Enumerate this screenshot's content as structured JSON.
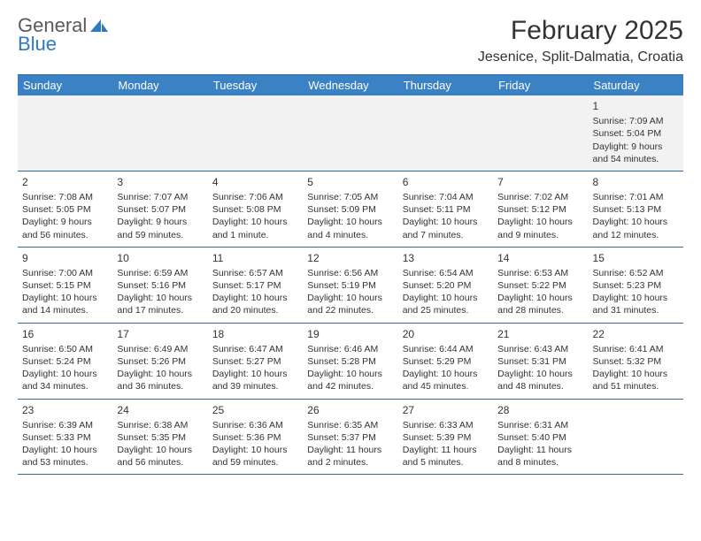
{
  "brand": {
    "word1": "General",
    "word2": "Blue"
  },
  "title": "February 2025",
  "location": "Jesenice, Split-Dalmatia, Croatia",
  "colors": {
    "header_bg": "#3b82c4",
    "header_text": "#ffffff",
    "rule": "#2f6aa8",
    "first_week_bg": "#f2f2f2",
    "brand_blue": "#2f7ac0",
    "brand_gray": "#5a5a5a",
    "text": "#333333"
  },
  "dayHeaders": [
    "Sunday",
    "Monday",
    "Tuesday",
    "Wednesday",
    "Thursday",
    "Friday",
    "Saturday"
  ],
  "weeks": [
    [
      null,
      null,
      null,
      null,
      null,
      null,
      {
        "n": "1",
        "sunrise": "Sunrise: 7:09 AM",
        "sunset": "Sunset: 5:04 PM",
        "daylight": "Daylight: 9 hours and 54 minutes."
      }
    ],
    [
      {
        "n": "2",
        "sunrise": "Sunrise: 7:08 AM",
        "sunset": "Sunset: 5:05 PM",
        "daylight": "Daylight: 9 hours and 56 minutes."
      },
      {
        "n": "3",
        "sunrise": "Sunrise: 7:07 AM",
        "sunset": "Sunset: 5:07 PM",
        "daylight": "Daylight: 9 hours and 59 minutes."
      },
      {
        "n": "4",
        "sunrise": "Sunrise: 7:06 AM",
        "sunset": "Sunset: 5:08 PM",
        "daylight": "Daylight: 10 hours and 1 minute."
      },
      {
        "n": "5",
        "sunrise": "Sunrise: 7:05 AM",
        "sunset": "Sunset: 5:09 PM",
        "daylight": "Daylight: 10 hours and 4 minutes."
      },
      {
        "n": "6",
        "sunrise": "Sunrise: 7:04 AM",
        "sunset": "Sunset: 5:11 PM",
        "daylight": "Daylight: 10 hours and 7 minutes."
      },
      {
        "n": "7",
        "sunrise": "Sunrise: 7:02 AM",
        "sunset": "Sunset: 5:12 PM",
        "daylight": "Daylight: 10 hours and 9 minutes."
      },
      {
        "n": "8",
        "sunrise": "Sunrise: 7:01 AM",
        "sunset": "Sunset: 5:13 PM",
        "daylight": "Daylight: 10 hours and 12 minutes."
      }
    ],
    [
      {
        "n": "9",
        "sunrise": "Sunrise: 7:00 AM",
        "sunset": "Sunset: 5:15 PM",
        "daylight": "Daylight: 10 hours and 14 minutes."
      },
      {
        "n": "10",
        "sunrise": "Sunrise: 6:59 AM",
        "sunset": "Sunset: 5:16 PM",
        "daylight": "Daylight: 10 hours and 17 minutes."
      },
      {
        "n": "11",
        "sunrise": "Sunrise: 6:57 AM",
        "sunset": "Sunset: 5:17 PM",
        "daylight": "Daylight: 10 hours and 20 minutes."
      },
      {
        "n": "12",
        "sunrise": "Sunrise: 6:56 AM",
        "sunset": "Sunset: 5:19 PM",
        "daylight": "Daylight: 10 hours and 22 minutes."
      },
      {
        "n": "13",
        "sunrise": "Sunrise: 6:54 AM",
        "sunset": "Sunset: 5:20 PM",
        "daylight": "Daylight: 10 hours and 25 minutes."
      },
      {
        "n": "14",
        "sunrise": "Sunrise: 6:53 AM",
        "sunset": "Sunset: 5:22 PM",
        "daylight": "Daylight: 10 hours and 28 minutes."
      },
      {
        "n": "15",
        "sunrise": "Sunrise: 6:52 AM",
        "sunset": "Sunset: 5:23 PM",
        "daylight": "Daylight: 10 hours and 31 minutes."
      }
    ],
    [
      {
        "n": "16",
        "sunrise": "Sunrise: 6:50 AM",
        "sunset": "Sunset: 5:24 PM",
        "daylight": "Daylight: 10 hours and 34 minutes."
      },
      {
        "n": "17",
        "sunrise": "Sunrise: 6:49 AM",
        "sunset": "Sunset: 5:26 PM",
        "daylight": "Daylight: 10 hours and 36 minutes."
      },
      {
        "n": "18",
        "sunrise": "Sunrise: 6:47 AM",
        "sunset": "Sunset: 5:27 PM",
        "daylight": "Daylight: 10 hours and 39 minutes."
      },
      {
        "n": "19",
        "sunrise": "Sunrise: 6:46 AM",
        "sunset": "Sunset: 5:28 PM",
        "daylight": "Daylight: 10 hours and 42 minutes."
      },
      {
        "n": "20",
        "sunrise": "Sunrise: 6:44 AM",
        "sunset": "Sunset: 5:29 PM",
        "daylight": "Daylight: 10 hours and 45 minutes."
      },
      {
        "n": "21",
        "sunrise": "Sunrise: 6:43 AM",
        "sunset": "Sunset: 5:31 PM",
        "daylight": "Daylight: 10 hours and 48 minutes."
      },
      {
        "n": "22",
        "sunrise": "Sunrise: 6:41 AM",
        "sunset": "Sunset: 5:32 PM",
        "daylight": "Daylight: 10 hours and 51 minutes."
      }
    ],
    [
      {
        "n": "23",
        "sunrise": "Sunrise: 6:39 AM",
        "sunset": "Sunset: 5:33 PM",
        "daylight": "Daylight: 10 hours and 53 minutes."
      },
      {
        "n": "24",
        "sunrise": "Sunrise: 6:38 AM",
        "sunset": "Sunset: 5:35 PM",
        "daylight": "Daylight: 10 hours and 56 minutes."
      },
      {
        "n": "25",
        "sunrise": "Sunrise: 6:36 AM",
        "sunset": "Sunset: 5:36 PM",
        "daylight": "Daylight: 10 hours and 59 minutes."
      },
      {
        "n": "26",
        "sunrise": "Sunrise: 6:35 AM",
        "sunset": "Sunset: 5:37 PM",
        "daylight": "Daylight: 11 hours and 2 minutes."
      },
      {
        "n": "27",
        "sunrise": "Sunrise: 6:33 AM",
        "sunset": "Sunset: 5:39 PM",
        "daylight": "Daylight: 11 hours and 5 minutes."
      },
      {
        "n": "28",
        "sunrise": "Sunrise: 6:31 AM",
        "sunset": "Sunset: 5:40 PM",
        "daylight": "Daylight: 11 hours and 8 minutes."
      },
      null
    ]
  ]
}
